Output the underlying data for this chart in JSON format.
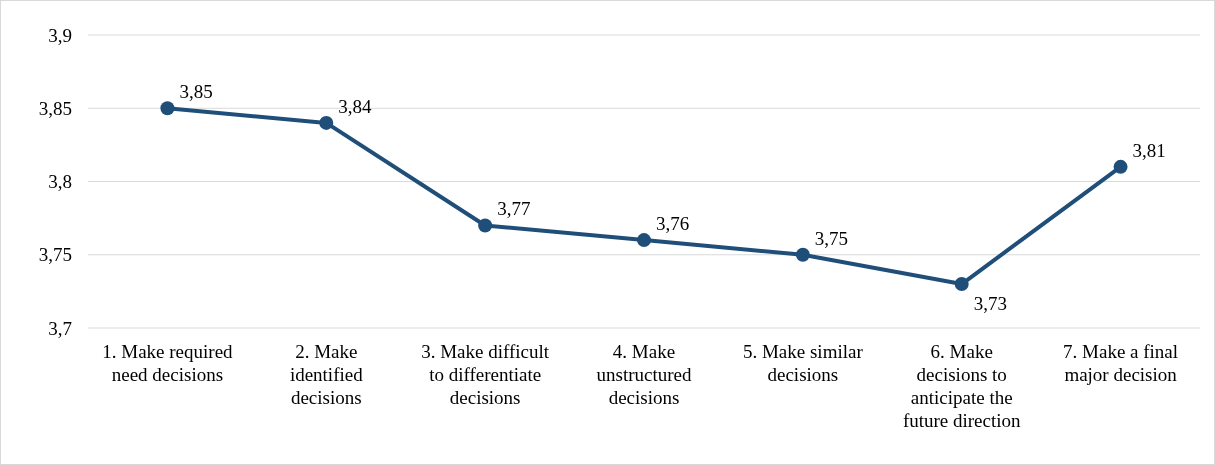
{
  "chart_data": {
    "type": "line",
    "categories": [
      "1. Make required need decisions",
      "2. Make identified decisions",
      "3. Make difficult to differentiate decisions",
      "4. Make unstructured decisions",
      "5. Make similar decisions",
      "6. Make decisions to anticipate the future direction",
      "7. Make a final major decision"
    ],
    "series": [
      {
        "color": "#1f4e79",
        "values": [
          3.85,
          3.84,
          3.77,
          3.76,
          3.75,
          3.73,
          3.81
        ],
        "value_labels": [
          "3,85",
          "3,84",
          "3,77",
          "3,76",
          "3,75",
          "3,73",
          "3,81"
        ]
      }
    ],
    "ylim": [
      3.7,
      3.9
    ],
    "yticks": [
      {
        "value": 3.7,
        "label": "3,7"
      },
      {
        "value": 3.75,
        "label": "3,75"
      },
      {
        "value": 3.8,
        "label": "3,8"
      },
      {
        "value": 3.85,
        "label": "3,85"
      },
      {
        "value": 3.9,
        "label": "3,9"
      }
    ],
    "grid": "y",
    "marker": "circle",
    "line_style": "solid"
  }
}
